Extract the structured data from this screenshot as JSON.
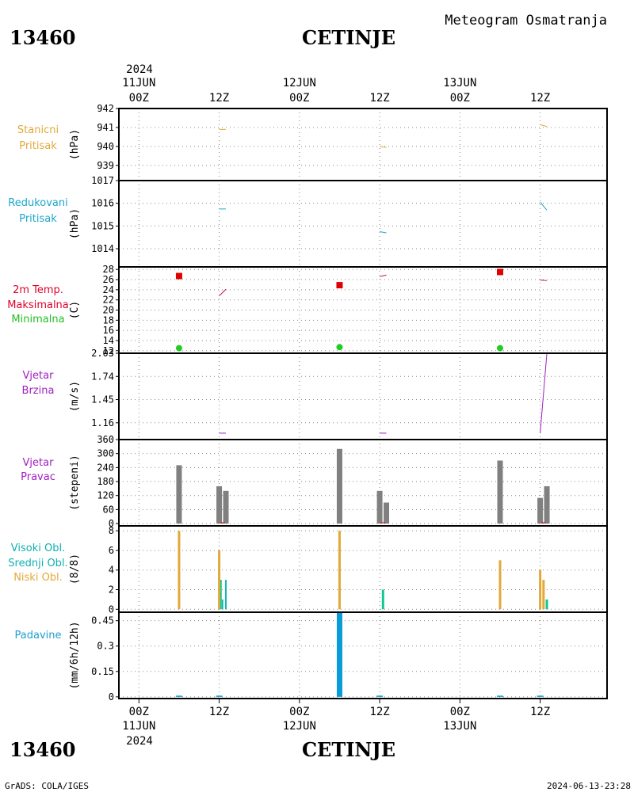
{
  "header": {
    "station_id": "13460",
    "station_name": "CETINJE",
    "meteogram_title": "Meteogram Osmatranja",
    "year": "2024"
  },
  "footer": {
    "station_id": "13460",
    "station_name": "CETINJE",
    "credit": "GrADS: COLA/IGES",
    "timestamp": "2024-06-13-23:28",
    "year": "2024"
  },
  "time_axis": {
    "ticks": [
      {
        "t": 0,
        "hour": "00Z",
        "date": "11JUN"
      },
      {
        "t": 12,
        "hour": "12Z",
        "date": ""
      },
      {
        "t": 24,
        "hour": "00Z",
        "date": "12JUN"
      },
      {
        "t": 36,
        "hour": "12Z",
        "date": ""
      },
      {
        "t": 48,
        "hour": "00Z",
        "date": "13JUN"
      },
      {
        "t": 60,
        "hour": "12Z",
        "date": ""
      }
    ],
    "range_hours": [
      -3,
      70
    ]
  },
  "colors": {
    "orange": "#e2a93a",
    "cyan": "#1ca7c8",
    "red": "#e00000",
    "green": "#22cc22",
    "magenta": "#c8005a",
    "purple": "#a020c0",
    "gray": "#808080",
    "teal": "#10b8b8",
    "seagreen": "#10c890",
    "blue": "#0a9cd8",
    "label_orange": "#e2a93a",
    "label_cyan": "#1ca7c8",
    "label_red": "#e0002a",
    "label_green": "#22c022",
    "label_purple": "#a020c0",
    "label_teal": "#10b0b0",
    "label_blue": "#1ca0d0"
  },
  "chart_data": [
    {
      "type": "line",
      "id": "station_pressure",
      "labels": [
        "Stanicni",
        "Pritisak"
      ],
      "ylabel": "(hPa)",
      "ylim": [
        938.2,
        942
      ],
      "yticks": [
        "939",
        "940",
        "941",
        "942"
      ],
      "series": [
        {
          "x": [
            12,
            13
          ],
          "y": [
            940.9,
            940.9
          ]
        },
        {
          "x": [
            36,
            37
          ],
          "y": [
            940.0,
            939.95
          ]
        },
        {
          "x": [
            60,
            61
          ],
          "y": [
            941.15,
            941.05
          ]
        }
      ]
    },
    {
      "type": "line",
      "id": "reduced_pressure",
      "labels": [
        "Redukovani",
        "Pritisak"
      ],
      "ylabel": "(hPa)",
      "ylim": [
        1013.2,
        1017
      ],
      "yticks": [
        "1014",
        "1015",
        "1016",
        "1017"
      ],
      "series": [
        {
          "x": [
            12,
            13
          ],
          "y": [
            1015.75,
            1015.75
          ]
        },
        {
          "x": [
            36,
            37
          ],
          "y": [
            1014.75,
            1014.7
          ]
        },
        {
          "x": [
            60,
            61
          ],
          "y": [
            1016.05,
            1015.7
          ]
        }
      ]
    },
    {
      "type": "line",
      "id": "temperature",
      "labels": [
        "2m Temp.",
        "Maksimalna",
        "Minimalna"
      ],
      "ylabel": "(C)",
      "ylim": [
        11.5,
        28.5
      ],
      "yticks": [
        "12",
        "14",
        "16",
        "18",
        "20",
        "22",
        "24",
        "26",
        "28"
      ],
      "series": [
        {
          "x": [
            12,
            13
          ],
          "y": [
            22.8,
            24.1
          ]
        },
        {
          "x": [
            36,
            37
          ],
          "y": [
            26.6,
            26.9
          ]
        },
        {
          "x": [
            60,
            61
          ],
          "y": [
            25.9,
            25.8
          ]
        }
      ],
      "max_points": {
        "x": [
          6,
          30,
          54
        ],
        "y": [
          26.7,
          24.9,
          27.5
        ]
      },
      "min_points": {
        "x": [
          6,
          30,
          54
        ],
        "y": [
          12.5,
          12.7,
          12.5
        ]
      }
    },
    {
      "type": "line",
      "id": "wind_speed",
      "labels": [
        "Vjetar",
        "Brzina"
      ],
      "ylabel": "(m/s)",
      "ylim": [
        0.95,
        2.03
      ],
      "yticks": [
        "1.16",
        "1.45",
        "1.74",
        "2.03"
      ],
      "series": [
        {
          "x": [
            12,
            13
          ],
          "y": [
            1.03,
            1.03
          ]
        },
        {
          "x": [
            36,
            37
          ],
          "y": [
            1.03,
            1.03
          ]
        },
        {
          "x": [
            60,
            61
          ],
          "y": [
            1.03,
            2.03
          ]
        }
      ]
    },
    {
      "type": "bar",
      "id": "wind_direction",
      "labels": [
        "Vjetar",
        "Pravac"
      ],
      "ylabel": "(stepeni)",
      "ylim": [
        -10,
        360
      ],
      "yticks": [
        "0",
        "60",
        "120",
        "180",
        "240",
        "300",
        "360"
      ],
      "bars": [
        {
          "x": 6,
          "v": 250
        },
        {
          "x": 12,
          "v": 160
        },
        {
          "x": 13,
          "v": 140
        },
        {
          "x": 30,
          "v": 320
        },
        {
          "x": 36,
          "v": 140
        },
        {
          "x": 37,
          "v": 90
        },
        {
          "x": 54,
          "v": 270
        },
        {
          "x": 60,
          "v": 110
        },
        {
          "x": 61,
          "v": 160
        }
      ]
    },
    {
      "type": "bar",
      "id": "clouds",
      "labels": [
        "Visoki Obl.",
        "Srednji Obl.",
        "Niski Obl."
      ],
      "ylabel": "(8/8)",
      "ylim": [
        -0.3,
        8.5
      ],
      "yticks": [
        "0",
        "2",
        "4",
        "6",
        "8"
      ],
      "series": [
        {
          "name": "Visoki Obl.",
          "x": [
            12.5,
            13
          ],
          "v": [
            1,
            3
          ]
        },
        {
          "name": "Srednji Obl.",
          "x": [
            12.2,
            36.5,
            61
          ],
          "v": [
            3,
            2,
            1
          ]
        },
        {
          "name": "Niski Obl.",
          "x": [
            6,
            12,
            30,
            54,
            60,
            60.5
          ],
          "v": [
            8,
            6,
            8,
            5,
            4,
            3
          ]
        }
      ]
    },
    {
      "type": "bar",
      "id": "precipitation",
      "labels": [
        "Padavine"
      ],
      "ylabel": "(mm/6h/12h)",
      "ylim": [
        -0.01,
        0.5
      ],
      "yticks": [
        "0",
        "0.15",
        "0.3",
        "0.45"
      ],
      "bars": [
        {
          "x": 6,
          "v": 0.005
        },
        {
          "x": 12,
          "v": 0.005
        },
        {
          "x": 30,
          "v": 0.5
        },
        {
          "x": 36,
          "v": 0.005
        },
        {
          "x": 54,
          "v": 0.005
        },
        {
          "x": 60,
          "v": 0.005
        }
      ]
    }
  ]
}
